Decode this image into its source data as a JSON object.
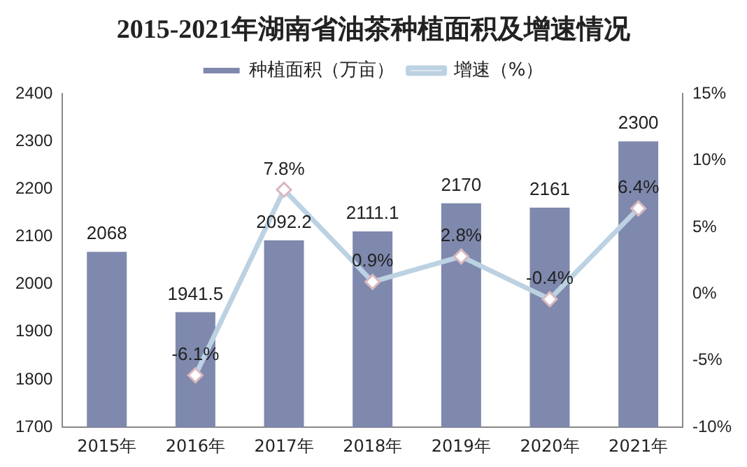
{
  "chart_data": {
    "type": "bar",
    "title": "2015-2021年湖南省油茶种植面积及增速情况",
    "categories": [
      "2015年",
      "2016年",
      "2017年",
      "2018年",
      "2019年",
      "2020年",
      "2021年"
    ],
    "series": [
      {
        "name": "种植面积（万亩）",
        "color": "#7f89ad",
        "values": [
          2068,
          1941.5,
          2092.2,
          2111.1,
          2170,
          2161,
          2300
        ],
        "value_labels": [
          "2068",
          "1941.5",
          "2092.2",
          "2111.1",
          "2170",
          "2161",
          "2300"
        ]
      },
      {
        "name": "增速（%）",
        "type": "line",
        "axis": "y2",
        "color": "#bcd2e3",
        "marker": "diamond",
        "values": [
          null,
          -6.1,
          7.8,
          0.9,
          2.8,
          -0.4,
          6.4
        ],
        "value_labels": [
          null,
          "-6.1%",
          "7.8%",
          "0.9%",
          "2.8%",
          "-0.4%",
          "6.4%"
        ]
      }
    ],
    "ylim": [
      1700,
      2400
    ],
    "yticks": [
      1700,
      1800,
      1900,
      2000,
      2100,
      2200,
      2300,
      2400
    ],
    "y2lim": [
      -10,
      15
    ],
    "y2ticks": [
      {
        "value": -10,
        "label": "-10%"
      },
      {
        "value": -5,
        "label": "-5%"
      },
      {
        "value": 0,
        "label": "0%"
      },
      {
        "value": 5,
        "label": "5%"
      },
      {
        "value": 10,
        "label": "10%"
      },
      {
        "value": 15,
        "label": "15%"
      }
    ],
    "grid": false,
    "legend": "top"
  }
}
